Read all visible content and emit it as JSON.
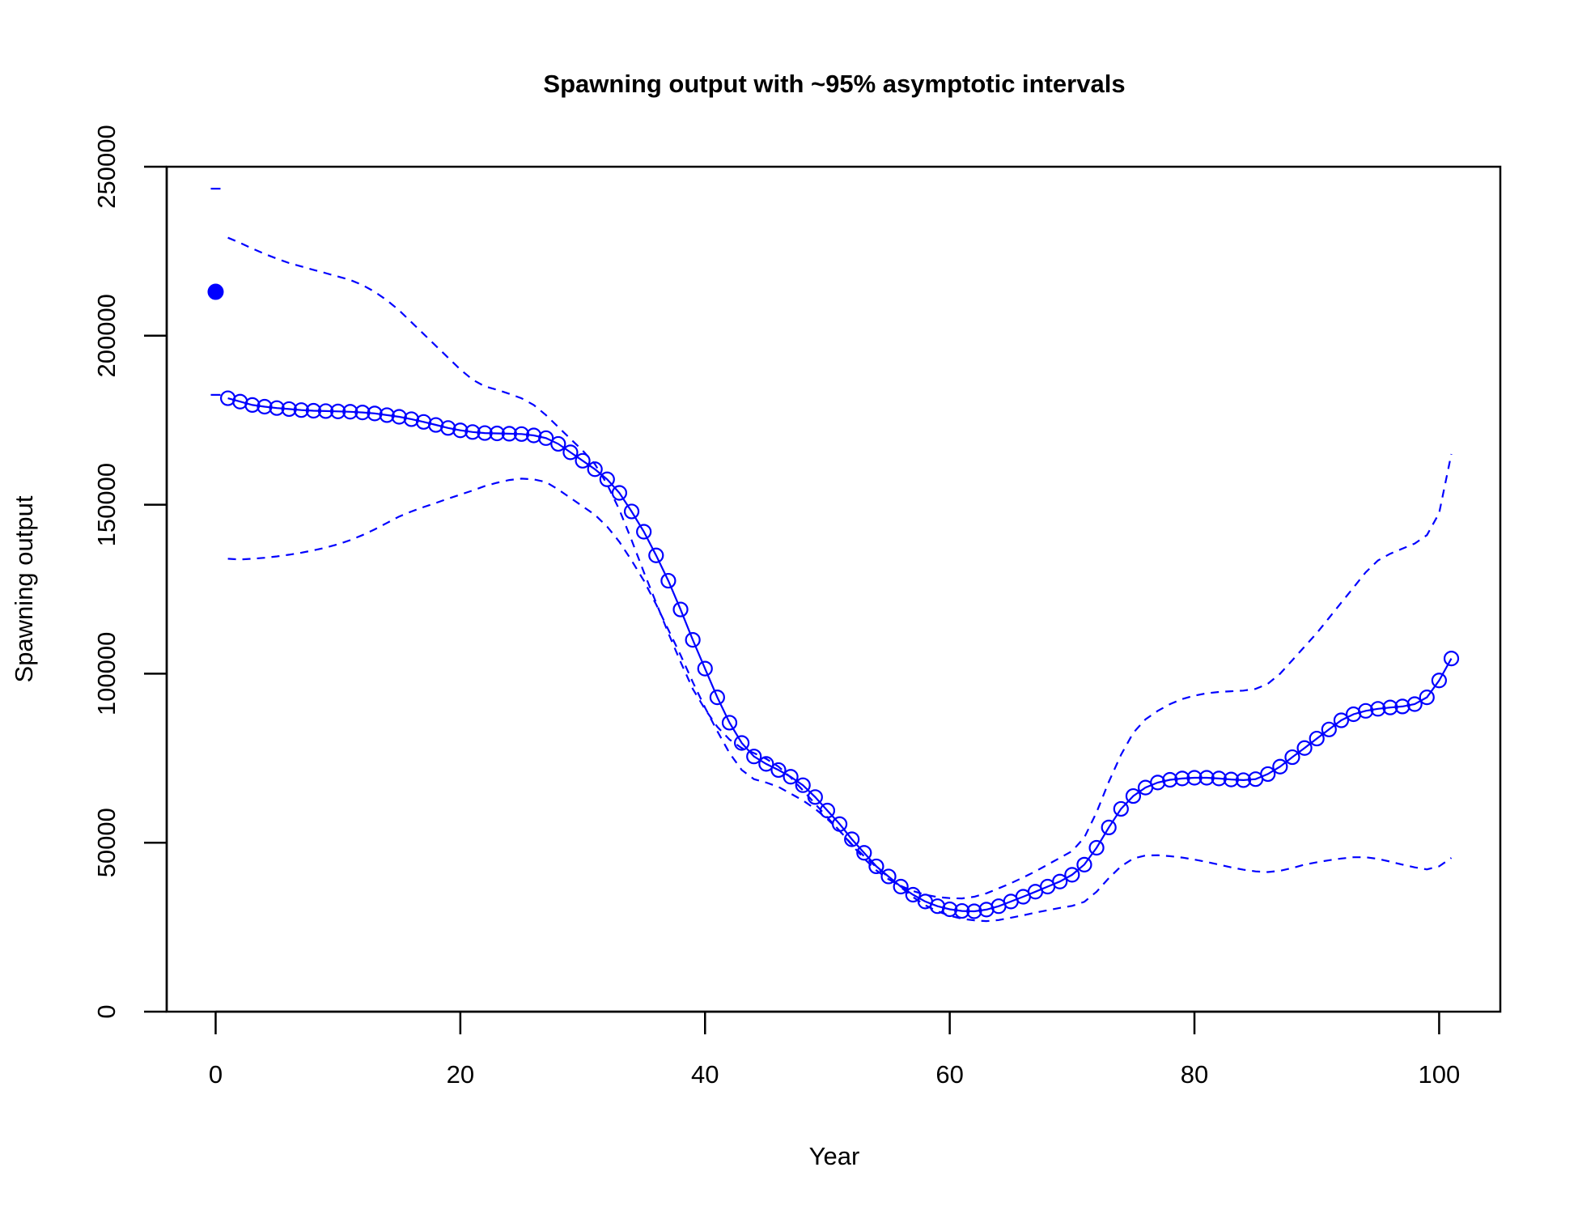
{
  "chart_data": {
    "type": "line",
    "title": "Spawning output with ~95% asymptotic intervals",
    "xlabel": "Year",
    "ylabel": "Spawning output",
    "xlim": [
      -4,
      105
    ],
    "ylim": [
      0,
      250000
    ],
    "x_ticks": [
      0,
      20,
      40,
      60,
      80,
      100
    ],
    "y_ticks": [
      0,
      50000,
      100000,
      150000,
      200000,
      250000
    ],
    "grid": false,
    "line_color": "#0000FF",
    "virgin": {
      "x": 0,
      "value": 213000,
      "upper": 243500,
      "lower": 182500
    },
    "series": [
      {
        "x": [
          1,
          2,
          3,
          4,
          5,
          6,
          7,
          8,
          9,
          10,
          11,
          12,
          13,
          14,
          15,
          16,
          17,
          18,
          19,
          20,
          21,
          22,
          23,
          24,
          25,
          26,
          27,
          28,
          29,
          30,
          31,
          32,
          33,
          34,
          35,
          36,
          37,
          38,
          39,
          40,
          41,
          42,
          43,
          44,
          45,
          46,
          47,
          48,
          49,
          50,
          51,
          52,
          53,
          54,
          55,
          56,
          57,
          58,
          59,
          60,
          61,
          62,
          63,
          64,
          65,
          66,
          67,
          68,
          69,
          70,
          71,
          72,
          73,
          74,
          75,
          76,
          77,
          78,
          79,
          80,
          81,
          82,
          83,
          84,
          85,
          86,
          87,
          88,
          89,
          90,
          91,
          92,
          93,
          94,
          95,
          96,
          97,
          98,
          99,
          100,
          101
        ],
        "values": [
          181500,
          180500,
          179500,
          179000,
          178600,
          178300,
          178000,
          177800,
          177700,
          177600,
          177500,
          177300,
          177000,
          176500,
          176000,
          175300,
          174500,
          173600,
          172700,
          172000,
          171500,
          171200,
          171100,
          171000,
          170900,
          170500,
          169700,
          168000,
          165500,
          163000,
          160500,
          157500,
          153500,
          148000,
          142000,
          135000,
          127500,
          119000,
          110000,
          101500,
          93000,
          85500,
          79500,
          75500,
          73300,
          71500,
          69500,
          67000,
          63500,
          59500,
          55500,
          51000,
          47000,
          43000,
          40000,
          37000,
          34600,
          32600,
          31200,
          30300,
          29800,
          29700,
          30200,
          31200,
          32600,
          34000,
          35500,
          37000,
          38500,
          40500,
          43500,
          48500,
          54500,
          60000,
          63800,
          66300,
          67800,
          68600,
          69000,
          69200,
          69200,
          69000,
          68700,
          68500,
          68800,
          70300,
          72500,
          75300,
          78000,
          80800,
          83500,
          86200,
          88000,
          89000,
          89600,
          90000,
          90300,
          91000,
          93000,
          98000,
          104500
        ]
      },
      {
        "x": [
          1,
          2,
          3,
          4,
          5,
          6,
          7,
          8,
          9,
          10,
          11,
          12,
          13,
          14,
          15,
          16,
          17,
          18,
          19,
          20,
          21,
          22,
          23,
          24,
          25,
          26,
          27,
          28,
          29,
          30,
          31,
          32,
          33,
          34,
          35,
          36,
          37,
          38,
          39,
          40,
          41,
          42,
          43,
          44,
          45,
          46,
          47,
          48,
          49,
          50,
          51,
          52,
          53,
          54,
          55,
          56,
          57,
          58,
          59,
          60,
          61,
          62,
          63,
          64,
          65,
          66,
          67,
          68,
          69,
          70,
          71,
          72,
          73,
          74,
          75,
          76,
          77,
          78,
          79,
          80,
          81,
          82,
          83,
          84,
          85,
          86,
          87,
          88,
          89,
          90,
          91,
          92,
          93,
          94,
          95,
          96,
          97,
          98,
          99,
          100,
          101
        ],
        "values": [
          229000,
          227500,
          225800,
          224200,
          222800,
          221500,
          220500,
          219500,
          218500,
          217500,
          216500,
          215000,
          213000,
          210500,
          207500,
          204000,
          200500,
          197000,
          193500,
          190000,
          187000,
          185000,
          184000,
          182800,
          181500,
          179500,
          176500,
          173000,
          169500,
          166000,
          162000,
          156000,
          148500,
          139500,
          130000,
          121000,
          112000,
          103500,
          95500,
          89500,
          84300,
          80500,
          78000,
          76500,
          74800,
          72500,
          69300,
          65500,
          61500,
          57500,
          53500,
          49300,
          45300,
          41800,
          39200,
          37200,
          35700,
          34600,
          33900,
          33600,
          33500,
          34000,
          35000,
          36500,
          38000,
          39700,
          41500,
          43500,
          45500,
          47500,
          51500,
          59000,
          68000,
          76000,
          82500,
          86500,
          89000,
          91000,
          92500,
          93500,
          94200,
          94600,
          94800,
          95000,
          95500,
          97000,
          100000,
          104000,
          108000,
          112000,
          116500,
          121000,
          125500,
          130000,
          133500,
          135500,
          137000,
          138500,
          141000,
          147500,
          165000
        ]
      },
      {
        "x": [
          1,
          2,
          3,
          4,
          5,
          6,
          7,
          8,
          9,
          10,
          11,
          12,
          13,
          14,
          15,
          16,
          17,
          18,
          19,
          20,
          21,
          22,
          23,
          24,
          25,
          26,
          27,
          28,
          29,
          30,
          31,
          32,
          33,
          34,
          35,
          36,
          37,
          38,
          39,
          40,
          41,
          42,
          43,
          44,
          45,
          46,
          47,
          48,
          49,
          50,
          51,
          52,
          53,
          54,
          55,
          56,
          57,
          58,
          59,
          60,
          61,
          62,
          63,
          64,
          65,
          66,
          67,
          68,
          69,
          70,
          71,
          72,
          73,
          74,
          75,
          76,
          77,
          78,
          79,
          80,
          81,
          82,
          83,
          84,
          85,
          86,
          87,
          88,
          89,
          90,
          91,
          92,
          93,
          94,
          95,
          96,
          97,
          98,
          99,
          100,
          101
        ],
        "values": [
          134000,
          133800,
          134000,
          134300,
          134700,
          135200,
          135800,
          136500,
          137300,
          138300,
          139500,
          141000,
          142700,
          144600,
          146500,
          148000,
          149300,
          150500,
          151800,
          153000,
          154200,
          155500,
          156500,
          157300,
          157700,
          157500,
          156700,
          154500,
          152000,
          149500,
          147000,
          143500,
          139000,
          133500,
          127500,
          120500,
          113000,
          105500,
          97500,
          90000,
          83000,
          76500,
          71500,
          68800,
          67800,
          66500,
          64500,
          62500,
          60000,
          57000,
          53500,
          49500,
          46000,
          42800,
          39800,
          36800,
          33900,
          31500,
          29700,
          28400,
          27500,
          27000,
          26800,
          27100,
          27800,
          28500,
          29300,
          30000,
          30700,
          31300,
          32500,
          35500,
          39500,
          43000,
          45300,
          46200,
          46300,
          46000,
          45600,
          45000,
          44300,
          43500,
          42700,
          42000,
          41500,
          41300,
          41700,
          42500,
          43500,
          44200,
          44800,
          45300,
          45700,
          45700,
          45200,
          44400,
          43500,
          42700,
          42100,
          43000,
          45500
        ]
      }
    ]
  }
}
